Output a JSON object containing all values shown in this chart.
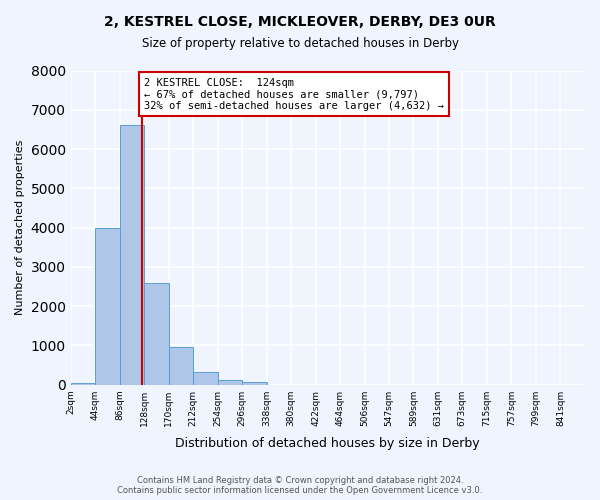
{
  "title": "2, KESTREL CLOSE, MICKLEOVER, DERBY, DE3 0UR",
  "subtitle": "Size of property relative to detached houses in Derby",
  "xlabel": "Distribution of detached houses by size in Derby",
  "ylabel": "Number of detached properties",
  "bin_labels": [
    "2sqm",
    "44sqm",
    "86sqm",
    "128sqm",
    "170sqm",
    "212sqm",
    "254sqm",
    "296sqm",
    "338sqm",
    "380sqm",
    "422sqm",
    "464sqm",
    "506sqm",
    "547sqm",
    "589sqm",
    "631sqm",
    "673sqm",
    "715sqm",
    "757sqm",
    "799sqm",
    "841sqm"
  ],
  "bar_values": [
    50,
    4000,
    6600,
    2600,
    950,
    330,
    130,
    70,
    0,
    0,
    0,
    0,
    0,
    0,
    0,
    0,
    0,
    0,
    0,
    0,
    0
  ],
  "bar_color": "#aec6e8",
  "bar_edge_color": "#5a9fd4",
  "background_color": "#f0f4ff",
  "grid_color": "#ffffff",
  "property_line_x": 124,
  "property_line_label": "2 KESTREL CLOSE:  124sqm",
  "annotation_line1": "← 67% of detached houses are smaller (9,797)",
  "annotation_line2": "32% of semi-detached houses are larger (4,632) →",
  "annotation_box_color": "#ffffff",
  "annotation_box_edge_color": "#cc0000",
  "vline_color": "#cc0000",
  "ylim": [
    0,
    8000
  ],
  "yticks": [
    0,
    1000,
    2000,
    3000,
    4000,
    5000,
    6000,
    7000,
    8000
  ],
  "footer_line1": "Contains HM Land Registry data © Crown copyright and database right 2024.",
  "footer_line2": "Contains public sector information licensed under the Open Government Licence v3.0.",
  "bin_width": 42
}
